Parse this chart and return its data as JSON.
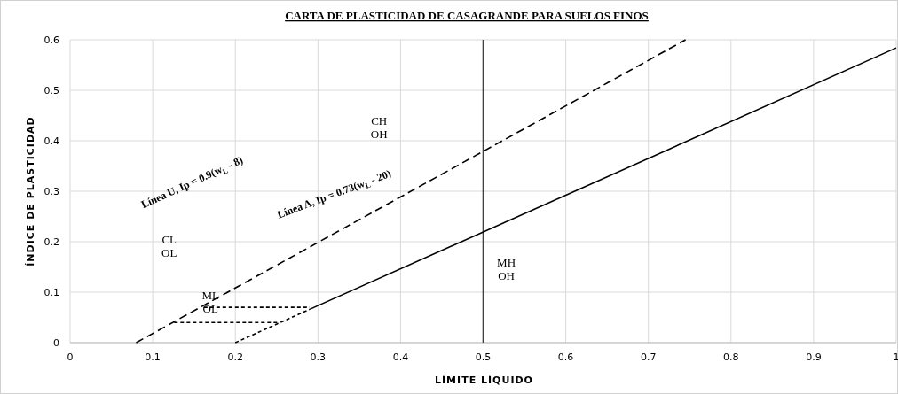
{
  "chart_data": {
    "type": "line",
    "title": "CARTA DE PLASTICIDAD DE CASAGRANDE PARA SUELOS FINOS",
    "xlabel": "LÍMITE LÍQUIDO",
    "ylabel": "ÍNDICE DE PLASTICIDAD",
    "xlim": [
      0,
      1
    ],
    "xticks": [
      0,
      0.1,
      0.2,
      0.3,
      0.4,
      0.5,
      0.6,
      0.7,
      0.8,
      0.9,
      1
    ],
    "ylim": [
      0,
      0.6
    ],
    "yticks": [
      0,
      0.1,
      0.2,
      0.3,
      0.4,
      0.5,
      0.6
    ],
    "grid": true,
    "series": [
      {
        "color": "#000000",
        "line_style": "dashed",
        "x": [
          0.08,
          0.745
        ],
        "values": [
          0,
          0.6
        ]
      },
      {
        "color": "#000000",
        "line_style": "solid",
        "x": [
          0.29,
          1
        ],
        "values": [
          0.066,
          0.584
        ]
      },
      {
        "color": "#000000",
        "line_style": "dotted",
        "x": [
          0.2,
          0.29
        ],
        "values": [
          0,
          0.066
        ]
      },
      {
        "color": "#000000",
        "line_style": "dotted",
        "x": [
          0.162,
          0.29
        ],
        "values": [
          0.07,
          0.07
        ]
      },
      {
        "color": "#000000",
        "line_style": "dotted",
        "x": [
          0.126,
          0.251
        ],
        "values": [
          0.04,
          0.04
        ]
      }
    ],
    "ref_lines": [
      {
        "axis": "x",
        "value": 0.5,
        "color": "#404040",
        "line_style": "solid"
      }
    ],
    "annotations": [
      "Línea U, Ip = 0.9(w$_{L}$ - 8)",
      "Línea A, Ip = 0.73(w$_{L}$ - 20)",
      "CH\nOH",
      "CL\nOL",
      "MH\nOH",
      {
        "text": "ML\nOL",
        "x": 0.17,
        "y": 0.079
      }
    ]
  }
}
